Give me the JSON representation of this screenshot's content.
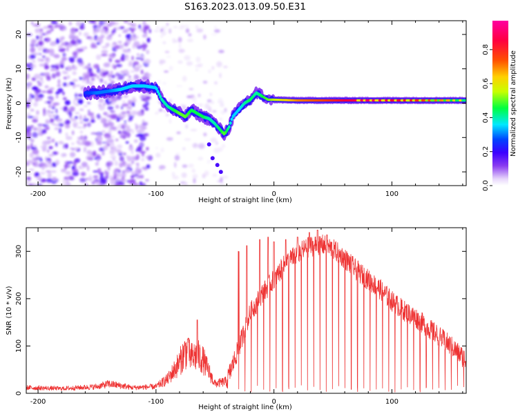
{
  "figure_title": "S163.2023.013.09.50.E31",
  "chart_data": [
    {
      "type": "heatmap",
      "title": "",
      "xlabel": "Height of straight line (km)",
      "ylabel": "Frequency (Hz)",
      "xlim": [
        -210,
        163
      ],
      "ylim": [
        -24,
        24
      ],
      "xticks": [
        -200,
        -100,
        0,
        100
      ],
      "yticks": [
        -20,
        -10,
        0,
        10,
        20
      ],
      "colorbar": {
        "label": "Normalized spectral amplitude",
        "range": [
          0.0,
          0.97
        ],
        "ticks": [
          0.0,
          0.2,
          0.4,
          0.6,
          0.8
        ],
        "colormap": [
          "#ffffff",
          "#e8d8fb",
          "#8a3cf0",
          "#3b00ff",
          "#0044ff",
          "#00e8ff",
          "#00ff40",
          "#c8ff00",
          "#ffd000",
          "#ff5000",
          "#ff0040",
          "#ff00a0"
        ]
      },
      "ridge": {
        "x": [
          -160,
          -150,
          -140,
          -130,
          -120,
          -110,
          -100,
          -95,
          -90,
          -85,
          -80,
          -75,
          -70,
          -65,
          -60,
          -55,
          -50,
          -45,
          -42,
          -38,
          -35,
          -30,
          -25,
          -20,
          -15,
          -10,
          -5,
          0,
          20,
          40,
          60,
          80,
          100,
          120,
          140,
          163
        ],
        "y": [
          3,
          3,
          3.5,
          4,
          5,
          5,
          4.5,
          1,
          -1,
          -2,
          -3,
          -4,
          -2,
          -3,
          -4,
          -4.5,
          -6,
          -8,
          -9,
          -7,
          -4,
          -2,
          0,
          1,
          3,
          2,
          1,
          1,
          0.8,
          0.8,
          0.8,
          0.8,
          0.8,
          0.8,
          0.8,
          0.8
        ],
        "amplitude": [
          0.25,
          0.3,
          0.3,
          0.35,
          0.35,
          0.35,
          0.35,
          0.4,
          0.4,
          0.45,
          0.5,
          0.5,
          0.45,
          0.45,
          0.45,
          0.4,
          0.4,
          0.45,
          0.5,
          0.4,
          0.35,
          0.35,
          0.4,
          0.45,
          0.4,
          0.45,
          0.5,
          0.55,
          0.7,
          0.75,
          0.85,
          0.9,
          0.85,
          0.8,
          0.7,
          0.6
        ]
      },
      "noise_regions": [
        {
          "x": [
            -210,
            -105
          ],
          "y": [
            -24,
            24
          ],
          "amplitude": [
            0.05,
            0.2
          ]
        },
        {
          "x": [
            -100,
            -40
          ],
          "y": [
            -24,
            24
          ],
          "amplitude": [
            0.02,
            0.08
          ]
        }
      ]
    },
    {
      "type": "line",
      "title": "",
      "xlabel": "Height of straight line (km)",
      "ylabel": "SNR (10 * v/v)",
      "xlim": [
        -210,
        163
      ],
      "ylim": [
        0,
        350
      ],
      "xticks": [
        -200,
        -100,
        0,
        100
      ],
      "yticks": [
        0,
        100,
        200,
        300
      ],
      "color": "#ee3333",
      "series": [
        {
          "envelope_x": [
            -210,
            -180,
            -150,
            -140,
            -120,
            -100,
            -90,
            -80,
            -75,
            -70,
            -65,
            -60,
            -55,
            -50,
            -40,
            -30,
            -20,
            -10,
            0,
            10,
            20,
            30,
            40,
            50,
            60,
            70,
            80,
            90,
            100,
            110,
            120,
            130,
            140,
            150,
            163
          ],
          "envelope_y": [
            12,
            10,
            14,
            20,
            12,
            14,
            30,
            65,
            90,
            75,
            80,
            70,
            45,
            20,
            25,
            95,
            170,
            210,
            240,
            275,
            295,
            310,
            315,
            305,
            285,
            260,
            240,
            220,
            195,
            175,
            160,
            140,
            120,
            100,
            70
          ],
          "peak_x": [
            -73,
            -65,
            -30,
            -23,
            -12,
            -5,
            0,
            10,
            20,
            30,
            37,
            45
          ],
          "peak_y": [
            115,
            155,
            300,
            312,
            325,
            330,
            320,
            325,
            330,
            340,
            345,
            335
          ],
          "dip_spacing": 5.3,
          "dip_start": -30
        }
      ]
    }
  ]
}
